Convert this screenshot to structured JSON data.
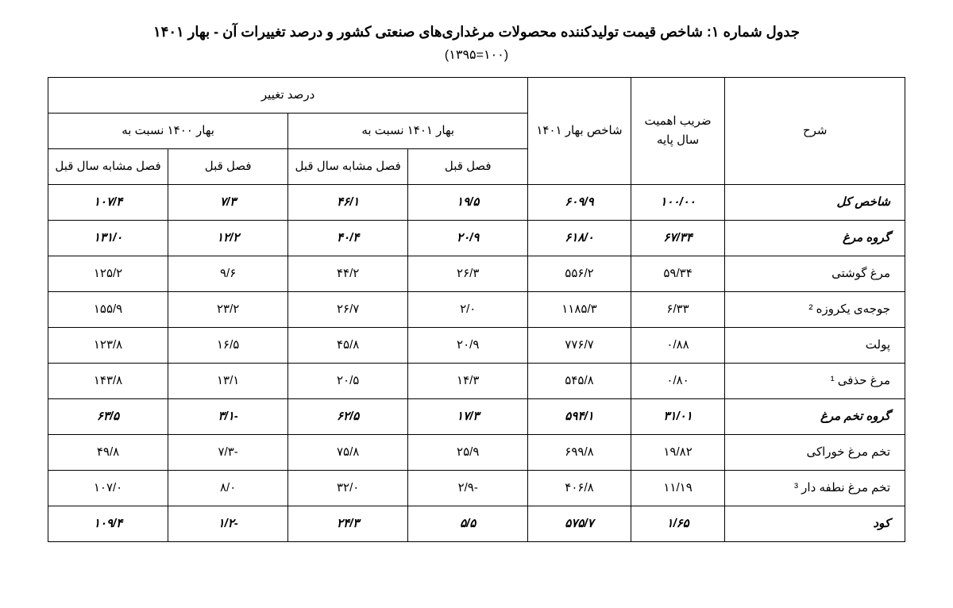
{
  "title": "جدول شماره ۱: شاخص قیمت تولیدکننده محصولات مرغداری‌های صنعتی کشور و درصد تغییرات آن - بهار ۱۴۰۱",
  "subtitle": "(۱۰۰=۱۳۹۵)",
  "columns": {
    "desc": "شرح",
    "weight": "ضریب اهمیت سال پایه",
    "index": "شاخص بهار ۱۴۰۱",
    "change_header": "درصد تغییر",
    "spring1401": "بهار ۱۴۰۱ نسبت به",
    "spring1400": "بهار ۱۴۰۰ نسبت به",
    "prev_q": "فصل قبل",
    "same_q_prev_y": "فصل مشابه سال قبل"
  },
  "rows": [
    {
      "bold": true,
      "desc": "شاخص کل",
      "weight": "۱۰۰/۰۰",
      "index": "۶۰۹/۹",
      "s1401_prev": "۱۹/۵",
      "s1401_same": "۴۶/۱",
      "s1400_prev": "۷/۳",
      "s1400_same": "۱۰۷/۴"
    },
    {
      "bold": true,
      "desc": "گروه مرغ",
      "weight": "۶۷/۳۴",
      "index": "۶۱۸/۰",
      "s1401_prev": "۲۰/۹",
      "s1401_same": "۴۰/۴",
      "s1400_prev": "۱۲/۲",
      "s1400_same": "۱۳۱/۰"
    },
    {
      "bold": false,
      "desc": "مرغ گوشتی",
      "weight": "۵۹/۳۴",
      "index": "۵۵۶/۲",
      "s1401_prev": "۲۶/۳",
      "s1401_same": "۴۴/۲",
      "s1400_prev": "۹/۶",
      "s1400_same": "۱۲۵/۲"
    },
    {
      "bold": false,
      "desc": "جوجه‌ی یکروزه ²",
      "weight": "۶/۳۳",
      "index": "۱۱۸۵/۳",
      "s1401_prev": "۲/۰",
      "s1401_same": "۲۶/۷",
      "s1400_prev": "۲۳/۲",
      "s1400_same": "۱۵۵/۹"
    },
    {
      "bold": false,
      "desc": "پولت",
      "weight": "۰/۸۸",
      "index": "۷۷۶/۷",
      "s1401_prev": "۲۰/۹",
      "s1401_same": "۴۵/۸",
      "s1400_prev": "۱۶/۵",
      "s1400_same": "۱۲۳/۸"
    },
    {
      "bold": false,
      "desc": "مرغ حذفی ¹",
      "weight": "۰/۸۰",
      "index": "۵۴۵/۸",
      "s1401_prev": "۱۴/۳",
      "s1401_same": "۲۰/۵",
      "s1400_prev": "۱۳/۱",
      "s1400_same": "۱۴۳/۸"
    },
    {
      "bold": true,
      "desc": "گروه تخم مرغ",
      "weight": "۳۱/۰۱",
      "index": "۵۹۴/۱",
      "s1401_prev": "۱۷/۳",
      "s1401_same": "۶۲/۵",
      "s1400_prev": "-۳/۱",
      "s1400_same": "۶۳/۵"
    },
    {
      "bold": false,
      "desc": "تخم مرغ خوراکی",
      "weight": "۱۹/۸۲",
      "index": "۶۹۹/۸",
      "s1401_prev": "۲۵/۹",
      "s1401_same": "۷۵/۸",
      "s1400_prev": "-۷/۳",
      "s1400_same": "۴۹/۸"
    },
    {
      "bold": false,
      "desc": "تخم مرغ نطفه دار ³",
      "weight": "۱۱/۱۹",
      "index": "۴۰۶/۸",
      "s1401_prev": "-۲/۹",
      "s1401_same": "۳۲/۰",
      "s1400_prev": "۸/۰",
      "s1400_same": "۱۰۷/۰"
    },
    {
      "bold": true,
      "desc": "کود",
      "weight": "۱/۶۵",
      "index": "۵۷۵/۷",
      "s1401_prev": "۵/۵",
      "s1401_same": "۲۴/۳",
      "s1400_prev": "-۱/۲",
      "s1400_same": "۱۰۹/۴"
    }
  ],
  "style": {
    "border_color": "#000000",
    "background": "#ffffff",
    "text_color": "#000000",
    "title_fontsize": 18,
    "cell_fontsize": 15
  }
}
